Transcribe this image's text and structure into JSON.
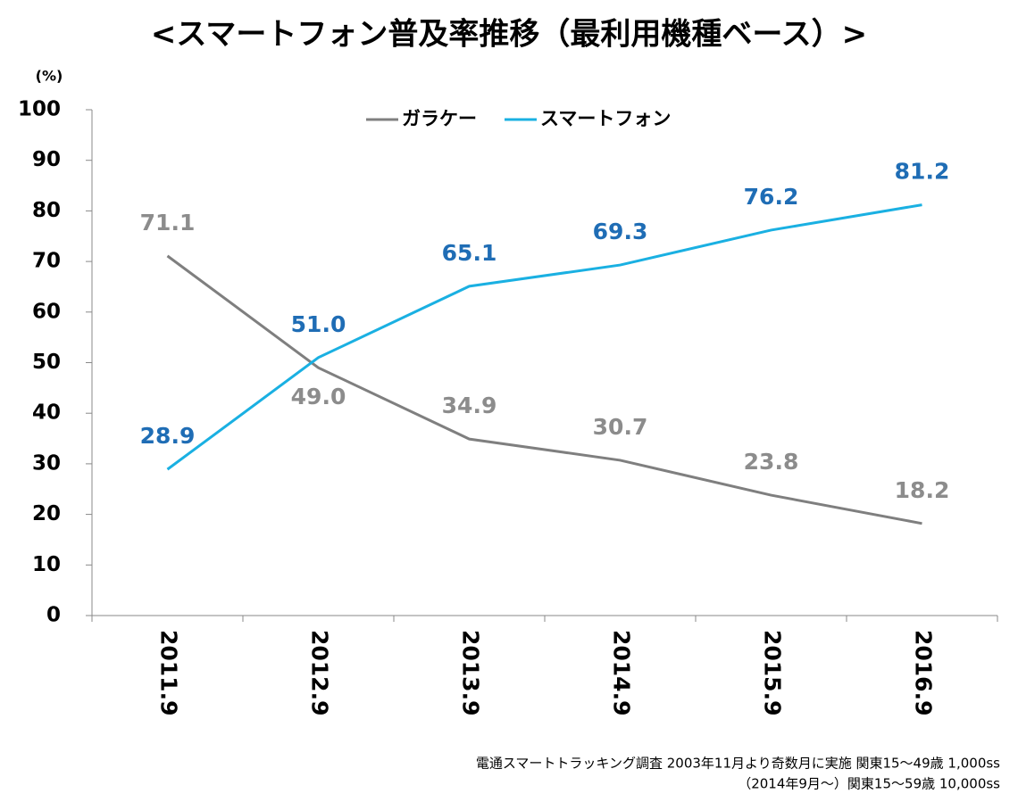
{
  "chart_data": {
    "type": "line",
    "title": "<スマートフォン普及率推移（最利用機種ベース）>",
    "y_unit": "(%)",
    "categories": [
      "2011.9",
      "2012.9",
      "2013.9",
      "2014.9",
      "2015.9",
      "2016.9"
    ],
    "series": [
      {
        "name": "ガラケー",
        "color": "#7f7f7f",
        "label_color": "#8c8c8c",
        "values": [
          71.1,
          49,
          34.9,
          30.7,
          23.8,
          18.2
        ],
        "value_labels": [
          "71.1",
          "49.0",
          "34.9",
          "30.7",
          "23.8",
          "18.2"
        ]
      },
      {
        "name": "スマートフォン",
        "color": "#1ab0e2",
        "label_color": "#1f6db5",
        "values": [
          28.9,
          51,
          65.1,
          69.3,
          76.2,
          81.2
        ],
        "value_labels": [
          "28.9",
          "51.0",
          "65.1",
          "69.3",
          "76.2",
          "81.2"
        ]
      }
    ],
    "ylim": [
      0,
      100
    ],
    "yticks": [
      0,
      10,
      20,
      30,
      40,
      50,
      60,
      70,
      80,
      90,
      100
    ],
    "grid": false,
    "notes": [
      "電通スマートトラッキング調査 2003年11月より奇数月に実施 関東15～49歳 1,000ss",
      "（2014年9月～）関東15～59歳 10,000ss"
    ]
  }
}
